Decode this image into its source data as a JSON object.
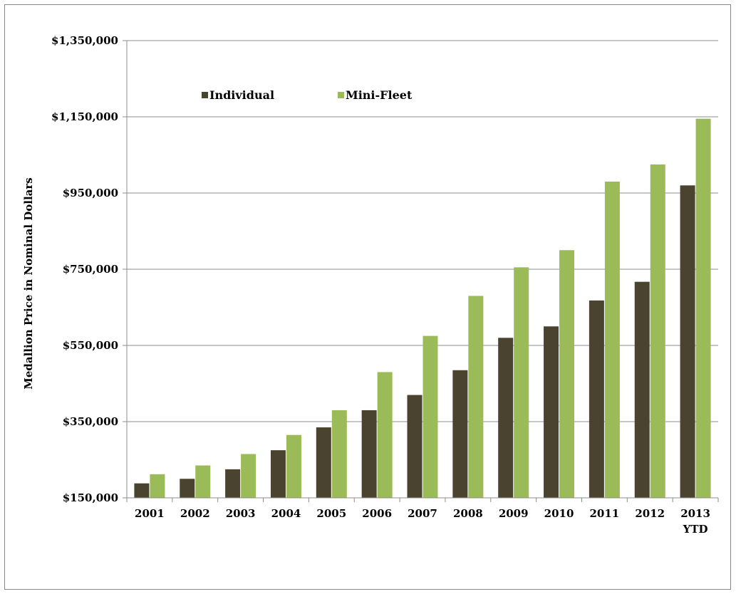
{
  "chart_data": {
    "type": "bar",
    "ylabel": "Medallion Price in Nominal Dollars",
    "categories": [
      [
        "2001"
      ],
      [
        "2002"
      ],
      [
        "2003"
      ],
      [
        "2004"
      ],
      [
        "2005"
      ],
      [
        "2006"
      ],
      [
        "2007"
      ],
      [
        "2008"
      ],
      [
        "2009"
      ],
      [
        "2010"
      ],
      [
        "2011"
      ],
      [
        "2012"
      ],
      [
        "2013",
        "YTD"
      ]
    ],
    "y_ticks": [
      150000,
      350000,
      550000,
      750000,
      950000,
      1150000,
      1350000
    ],
    "y_tick_labels": [
      "$150,000",
      "$350,000",
      "$550,000",
      "$750,000",
      "$950,000",
      "$1,150,000",
      "$1,350,000"
    ],
    "ylim": [
      150000,
      1350000
    ],
    "grid": true,
    "legend_position": "top-left",
    "series": [
      {
        "name": "Individual",
        "color": "#4a4330",
        "values": [
          188000,
          200000,
          225000,
          275000,
          335000,
          380000,
          420000,
          485000,
          570000,
          600000,
          668000,
          717000,
          970000
        ]
      },
      {
        "name": "Mini-Fleet",
        "color": "#9bbb59",
        "values": [
          212000,
          235000,
          265000,
          315000,
          380000,
          480000,
          575000,
          680000,
          755000,
          800000,
          980000,
          1025000,
          1145000
        ]
      }
    ]
  }
}
